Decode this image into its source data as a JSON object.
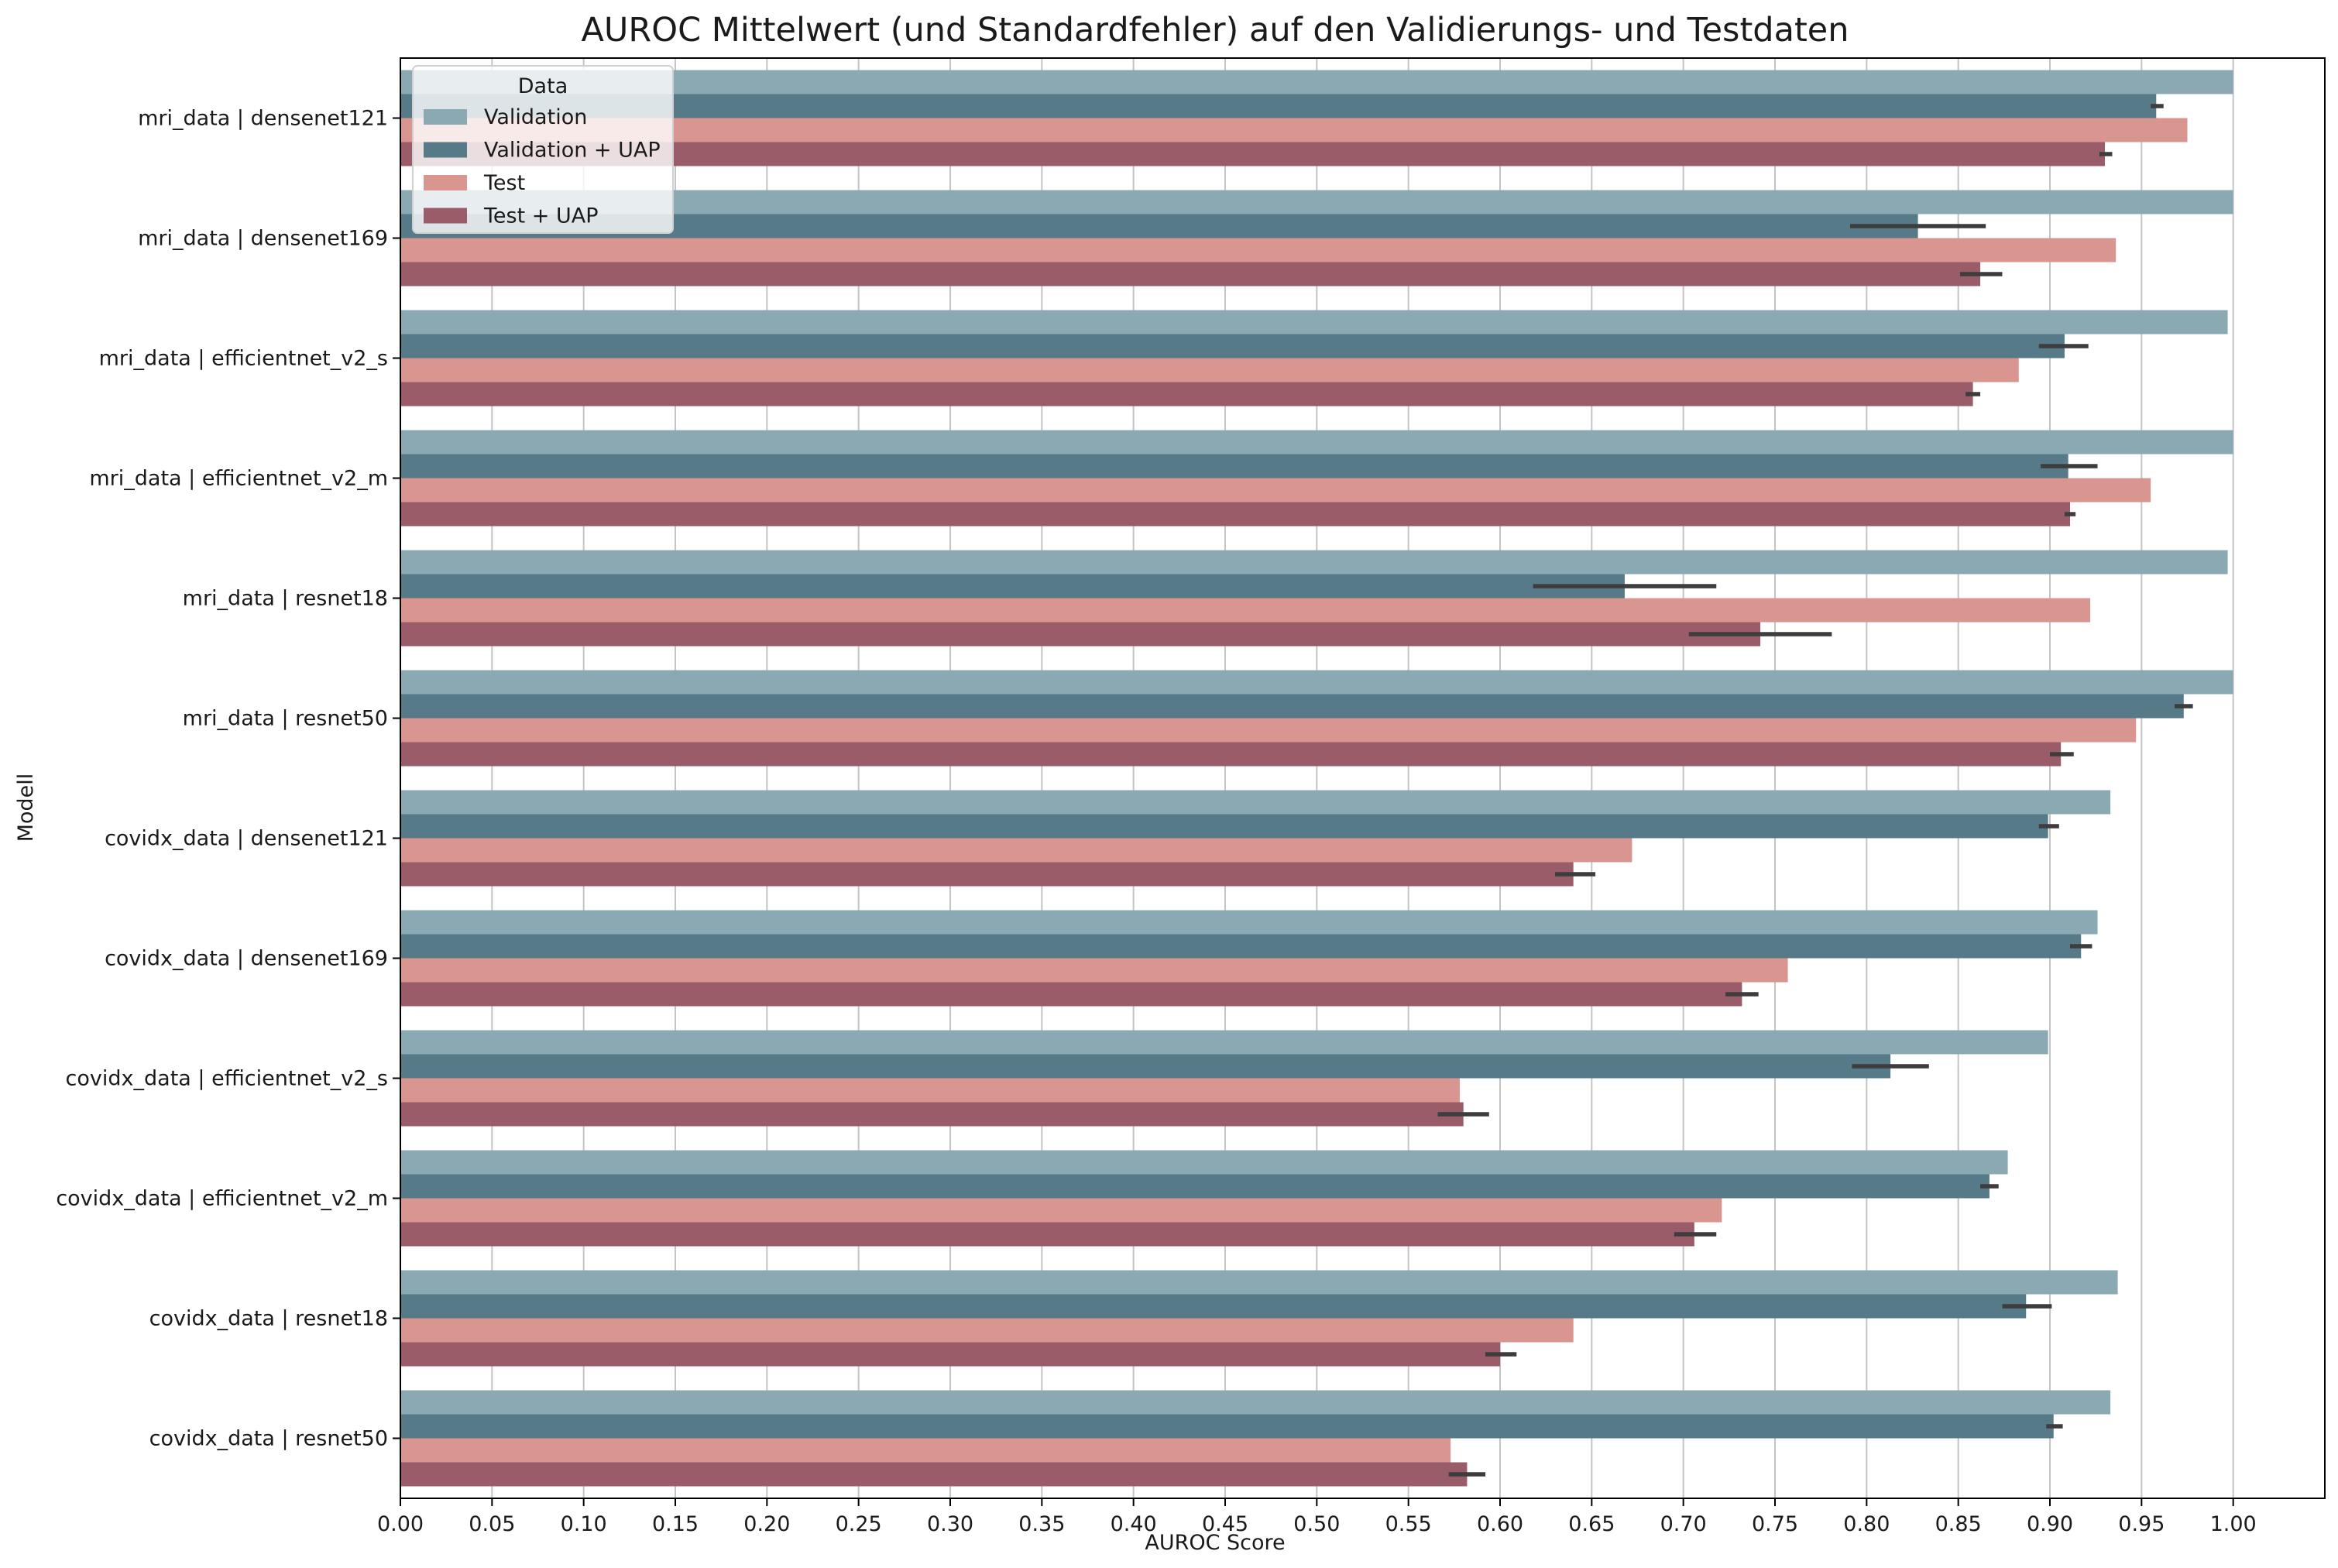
{
  "chart_data": {
    "type": "bar",
    "orientation": "horizontal",
    "title": "AUROC Mittelwert (und Standardfehler) auf den Validierungs- und Testdaten",
    "xlabel": "AUROC Score",
    "ylabel": "Modell",
    "xlim": [
      0.0,
      1.05
    ],
    "xticks": [
      "0.00",
      "0.05",
      "0.10",
      "0.15",
      "0.20",
      "0.25",
      "0.30",
      "0.35",
      "0.40",
      "0.45",
      "0.50",
      "0.55",
      "0.60",
      "0.65",
      "0.70",
      "0.75",
      "0.80",
      "0.85",
      "0.90",
      "0.95",
      "1.00"
    ],
    "grid": "vertical",
    "legend": {
      "title": "Data",
      "placement": "top-left"
    },
    "categories": [
      "mri_data | densenet121",
      "mri_data | densenet169",
      "mri_data | efficientnet_v2_s",
      "mri_data | efficientnet_v2_m",
      "mri_data | resnet18",
      "mri_data | resnet50",
      "covidx_data | densenet121",
      "covidx_data | densenet169",
      "covidx_data | efficientnet_v2_s",
      "covidx_data | efficientnet_v2_m",
      "covidx_data | resnet18",
      "covidx_data | resnet50"
    ],
    "series": [
      {
        "name": "Validation",
        "color": "#8aa9b3",
        "values": [
          1.0,
          1.0,
          0.997,
          1.0,
          0.997,
          1.0,
          0.933,
          0.926,
          0.899,
          0.877,
          0.937,
          0.933
        ],
        "error": [
          null,
          null,
          null,
          null,
          null,
          null,
          null,
          null,
          null,
          null,
          null,
          null
        ]
      },
      {
        "name": "Validation + UAP",
        "color": "#567a88",
        "values": [
          0.958,
          0.828,
          0.908,
          0.91,
          0.668,
          0.973,
          0.899,
          0.917,
          0.813,
          0.867,
          0.887,
          0.902
        ],
        "error": [
          [
            0.955,
            0.962
          ],
          [
            0.791,
            0.865
          ],
          [
            0.894,
            0.921
          ],
          [
            0.895,
            0.926
          ],
          [
            0.618,
            0.718
          ],
          [
            0.968,
            0.978
          ],
          [
            0.894,
            0.905
          ],
          [
            0.911,
            0.923
          ],
          [
            0.792,
            0.834
          ],
          [
            0.862,
            0.872
          ],
          [
            0.874,
            0.901
          ],
          [
            0.898,
            0.907
          ]
        ]
      },
      {
        "name": "Test",
        "color": "#d9958f",
        "values": [
          0.975,
          0.936,
          0.883,
          0.955,
          0.922,
          0.947,
          0.672,
          0.757,
          0.578,
          0.721,
          0.64,
          0.573
        ],
        "error": [
          null,
          null,
          null,
          null,
          null,
          null,
          null,
          null,
          null,
          null,
          null,
          null
        ]
      },
      {
        "name": "Test + UAP",
        "color": "#9b5c69",
        "values": [
          0.93,
          0.862,
          0.858,
          0.911,
          0.742,
          0.906,
          0.64,
          0.732,
          0.58,
          0.706,
          0.6,
          0.582
        ],
        "error": [
          [
            0.927,
            0.934
          ],
          [
            0.851,
            0.874
          ],
          [
            0.854,
            0.862
          ],
          [
            0.908,
            0.914
          ],
          [
            0.703,
            0.781
          ],
          [
            0.9,
            0.913
          ],
          [
            0.63,
            0.652
          ],
          [
            0.723,
            0.741
          ],
          [
            0.566,
            0.594
          ],
          [
            0.695,
            0.718
          ],
          [
            0.592,
            0.609
          ],
          [
            0.572,
            0.592
          ]
        ]
      }
    ]
  }
}
